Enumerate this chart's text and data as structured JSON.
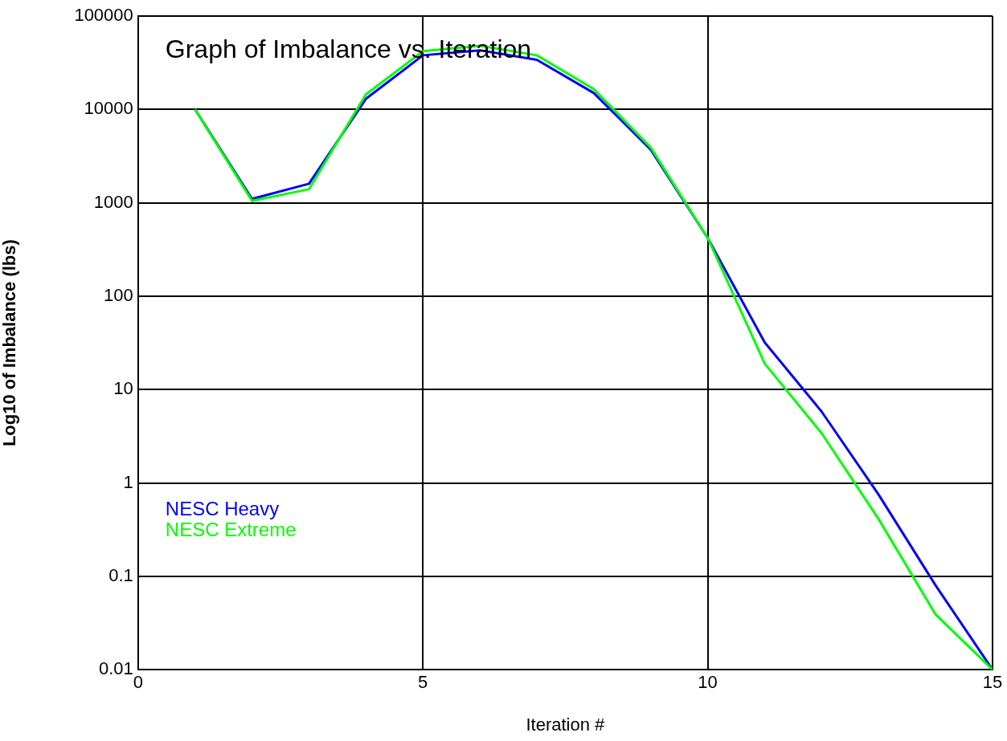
{
  "chart_data": {
    "type": "line",
    "title": "Graph of Imbalance vs. Iteration",
    "xlabel": "Iteration #",
    "ylabel": "Log10 of Imbalance (lbs)",
    "x": [
      1,
      2,
      3,
      4,
      5,
      6,
      7,
      8,
      9,
      10,
      11,
      12,
      13,
      14,
      15
    ],
    "series": [
      {
        "name": "NESC Heavy",
        "color": "#0000ff",
        "values": [
          10000,
          1100,
          1600,
          13000,
          38000,
          43000,
          34000,
          15000,
          3700,
          420,
          32,
          5.8,
          0.75,
          0.08,
          0.01
        ]
      },
      {
        "name": "NESC Extreme",
        "color": "#00ff00",
        "values": [
          10000,
          1050,
          1400,
          14500,
          42000,
          48000,
          38000,
          16500,
          3900,
          420,
          19,
          3.4,
          0.41,
          0.039,
          0.01
        ]
      }
    ],
    "xlim": [
      0,
      15
    ],
    "xticks": [
      0,
      5,
      10,
      15
    ],
    "ylim": [
      0.01,
      100000
    ],
    "yticks": [
      0.01,
      0.1,
      1,
      10,
      100,
      1000,
      10000,
      100000
    ],
    "log": "y",
    "grid": true,
    "legend": "bottom left",
    "marker": "none",
    "line_style": "solid"
  }
}
